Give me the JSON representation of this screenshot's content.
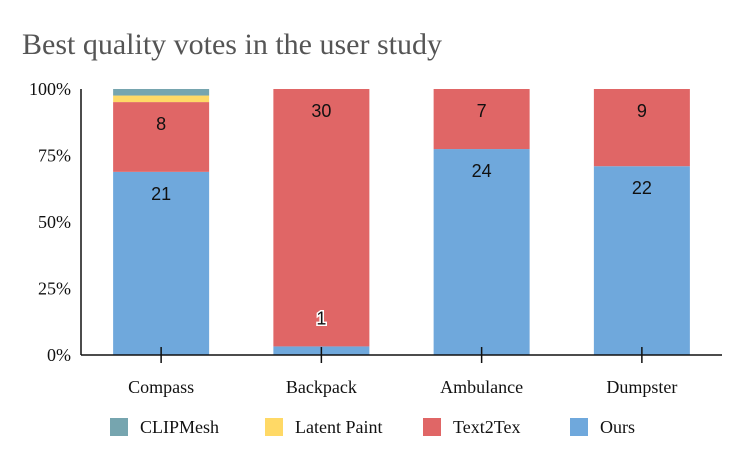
{
  "chart_data": {
    "type": "bar",
    "stacked": "percent",
    "title": "Best quality votes in the user study",
    "xlabel": "",
    "ylabel": "",
    "ylim": [
      0,
      100
    ],
    "yticks": [
      "0%",
      "25%",
      "50%",
      "75%",
      "100%"
    ],
    "categories": [
      "Compass",
      "Backpack",
      "Ambulance",
      "Dumpster"
    ],
    "series": [
      {
        "name": "Ours",
        "color": "#6fa8dc",
        "values": [
          21,
          1,
          24,
          22
        ],
        "labels": [
          "21",
          "1",
          "24",
          "22"
        ]
      },
      {
        "name": "Text2Tex",
        "color": "#e06666",
        "values": [
          8,
          30,
          7,
          9
        ],
        "labels": [
          "8",
          "30",
          "7",
          "9"
        ]
      },
      {
        "name": "Latent Paint",
        "color": "#ffd966",
        "values": [
          0.75,
          0,
          0,
          0
        ],
        "labels": [
          "",
          "",
          "",
          ""
        ]
      },
      {
        "name": "CLIPMesh",
        "color": "#76a5af",
        "values": [
          0.75,
          0,
          0,
          0
        ],
        "labels": [
          "",
          "",
          "",
          ""
        ]
      }
    ],
    "legend": {
      "position": "bottom",
      "order": [
        "CLIPMesh",
        "Latent Paint",
        "Text2Tex",
        "Ours"
      ]
    }
  }
}
